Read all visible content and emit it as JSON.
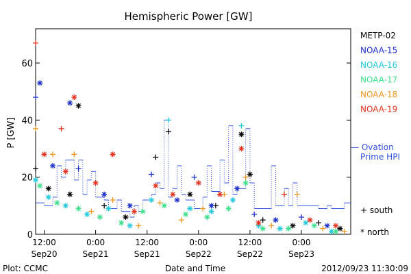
{
  "chart_data": {
    "type": "scatter",
    "title": "Hemispheric Power [GW]",
    "ylabel": "P [GW]",
    "xlabel": "Date and Time",
    "ylim": [
      0,
      72
    ],
    "yticks": [
      0,
      20,
      40,
      60
    ],
    "xlim": [
      "2012-09-20 10:00",
      "2012-09-23 11:30"
    ],
    "xticks": [
      {
        "t": "2012-09-20 12:00",
        "top": "12:00",
        "bottom": "Sep20"
      },
      {
        "t": "2012-09-21 00:00",
        "top": "0:00",
        "bottom": "Sep21"
      },
      {
        "t": "2012-09-21 12:00",
        "top": "12:00",
        "bottom": "Sep21"
      },
      {
        "t": "2012-09-22 00:00",
        "top": "0:00",
        "bottom": "Sep22"
      },
      {
        "t": "2012-09-22 12:00",
        "top": "12:00",
        "bottom": "Sep22"
      },
      {
        "t": "2012-09-23 00:00",
        "top": "0:00",
        "bottom": "Sep23"
      }
    ],
    "grid": false,
    "legend_position": "right",
    "series": [
      {
        "name": "METP-02",
        "color": "#000000",
        "points": [
          [
            "2012-09-20 10:00",
            23,
            "south"
          ],
          [
            "2012-09-20 13:00",
            16,
            "north"
          ],
          [
            "2012-09-20 18:00",
            14,
            "north"
          ],
          [
            "2012-09-20 20:00",
            45,
            "north"
          ],
          [
            "2012-09-21 02:00",
            10,
            "south"
          ],
          [
            "2012-09-21 07:00",
            6,
            "north"
          ],
          [
            "2012-09-21 14:00",
            27,
            "south"
          ],
          [
            "2012-09-21 17:00",
            36,
            "south"
          ],
          [
            "2012-09-21 22:00",
            14,
            "north"
          ],
          [
            "2012-09-22 04:00",
            10,
            "south"
          ],
          [
            "2012-09-22 10:00",
            35,
            "north"
          ],
          [
            "2012-09-22 12:00",
            21,
            "north"
          ],
          [
            "2012-09-22 15:00",
            5,
            "south"
          ],
          [
            "2012-09-22 22:00",
            3,
            "north"
          ],
          [
            "2012-09-23 04:00",
            4,
            "south"
          ],
          [
            "2012-09-23 09:00",
            2,
            "north"
          ]
        ]
      },
      {
        "name": "NOAA-15",
        "color": "#1c2ec8",
        "points": [
          [
            "2012-09-20 10:00",
            48,
            "south"
          ],
          [
            "2012-09-20 11:00",
            53,
            "north"
          ],
          [
            "2012-09-20 14:00",
            24,
            "north"
          ],
          [
            "2012-09-20 18:00",
            46,
            "north"
          ],
          [
            "2012-09-20 20:00",
            23,
            "south"
          ],
          [
            "2012-09-21 02:00",
            14,
            "north"
          ],
          [
            "2012-09-21 08:00",
            10,
            "north"
          ],
          [
            "2012-09-21 13:00",
            21,
            "south"
          ],
          [
            "2012-09-21 19:00",
            12,
            "north"
          ],
          [
            "2012-09-21 23:00",
            20,
            "south"
          ],
          [
            "2012-09-22 03:00",
            10,
            "north"
          ],
          [
            "2012-09-22 09:00",
            16,
            "north"
          ],
          [
            "2012-09-22 13:00",
            7,
            "south"
          ],
          [
            "2012-09-22 18:00",
            5,
            "north"
          ],
          [
            "2012-09-23 00:00",
            6,
            "south"
          ],
          [
            "2012-09-23 06:00",
            3,
            "north"
          ]
        ]
      },
      {
        "name": "NOAA-16",
        "color": "#22c8dc",
        "points": [
          [
            "2012-09-20 10:00",
            19,
            "north"
          ],
          [
            "2012-09-20 13:00",
            13,
            "north"
          ],
          [
            "2012-09-20 17:00",
            10,
            "north"
          ],
          [
            "2012-09-20 22:00",
            7,
            "north"
          ],
          [
            "2012-09-21 03:00",
            9,
            "north"
          ],
          [
            "2012-09-21 08:00",
            3,
            "north"
          ],
          [
            "2012-09-21 13:00",
            12,
            "north"
          ],
          [
            "2012-09-21 17:00",
            40,
            "south"
          ],
          [
            "2012-09-21 22:00",
            9,
            "north"
          ],
          [
            "2012-09-22 03:00",
            8,
            "north"
          ],
          [
            "2012-09-22 08:00",
            12,
            "north"
          ],
          [
            "2012-09-22 10:00",
            38,
            "south"
          ],
          [
            "2012-09-22 14:00",
            3,
            "north"
          ],
          [
            "2012-09-22 19:00",
            2,
            "north"
          ],
          [
            "2012-09-23 01:00",
            4,
            "north"
          ],
          [
            "2012-09-23 07:00",
            1,
            "north"
          ]
        ]
      },
      {
        "name": "NOAA-17",
        "color": "#3ce08c",
        "points": [
          [
            "2012-09-20 11:00",
            17,
            "north"
          ],
          [
            "2012-09-20 15:00",
            11,
            "north"
          ],
          [
            "2012-09-20 20:00",
            9,
            "north"
          ],
          [
            "2012-09-21 01:00",
            6,
            "north"
          ],
          [
            "2012-09-21 06:00",
            4,
            "north"
          ],
          [
            "2012-09-21 11:00",
            8,
            "north"
          ],
          [
            "2012-09-21 16:00",
            10,
            "north"
          ],
          [
            "2012-09-21 21:00",
            7,
            "north"
          ],
          [
            "2012-09-22 02:00",
            6,
            "north"
          ],
          [
            "2012-09-22 07:00",
            9,
            "north"
          ],
          [
            "2012-09-22 11:00",
            18,
            "north"
          ],
          [
            "2012-09-22 15:00",
            2,
            "north"
          ],
          [
            "2012-09-22 21:00",
            2,
            "north"
          ],
          [
            "2012-09-23 03:00",
            3,
            "north"
          ],
          [
            "2012-09-23 08:00",
            1,
            "north"
          ]
        ]
      },
      {
        "name": "NOAA-18",
        "color": "#f0961e",
        "points": [
          [
            "2012-09-20 10:00",
            37,
            "south"
          ],
          [
            "2012-09-20 14:00",
            28,
            "south"
          ],
          [
            "2012-09-20 19:00",
            28,
            "south"
          ],
          [
            "2012-09-20 23:00",
            8,
            "south"
          ],
          [
            "2012-09-21 04:00",
            12,
            "south"
          ],
          [
            "2012-09-21 10:00",
            3,
            "south"
          ],
          [
            "2012-09-21 15:00",
            11,
            "south"
          ],
          [
            "2012-09-21 20:00",
            5,
            "south"
          ],
          [
            "2012-09-22 01:00",
            9,
            "south"
          ],
          [
            "2012-09-22 06:00",
            14,
            "south"
          ],
          [
            "2012-09-22 11:00",
            20,
            "south"
          ],
          [
            "2012-09-22 17:00",
            3,
            "south"
          ],
          [
            "2012-09-22 23:00",
            14,
            "south"
          ],
          [
            "2012-09-23 05:00",
            2,
            "south"
          ],
          [
            "2012-09-23 10:00",
            1,
            "south"
          ]
        ]
      },
      {
        "name": "NOAA-19",
        "color": "#e0321e",
        "points": [
          [
            "2012-09-20 10:00",
            67,
            "south"
          ],
          [
            "2012-09-20 12:00",
            28,
            "north"
          ],
          [
            "2012-09-20 16:00",
            37,
            "south"
          ],
          [
            "2012-09-20 17:00",
            22,
            "north"
          ],
          [
            "2012-09-20 19:00",
            48,
            "north"
          ],
          [
            "2012-09-21 00:00",
            18,
            "north"
          ],
          [
            "2012-09-21 04:00",
            28,
            "north"
          ],
          [
            "2012-09-21 09:00",
            8,
            "north"
          ],
          [
            "2012-09-21 14:00",
            17,
            "north"
          ],
          [
            "2012-09-21 18:00",
            14,
            "north"
          ],
          [
            "2012-09-22 00:00",
            18,
            "north"
          ],
          [
            "2012-09-22 05:00",
            14,
            "north"
          ],
          [
            "2012-09-22 10:00",
            30,
            "north"
          ],
          [
            "2012-09-22 14:00",
            4,
            "north"
          ],
          [
            "2012-09-22 20:00",
            14,
            "south"
          ],
          [
            "2012-09-23 02:00",
            5,
            "north"
          ],
          [
            "2012-09-23 08:00",
            3,
            "north"
          ]
        ]
      }
    ],
    "ovation_line": {
      "name": "— Ovation Prime HPI",
      "color": "#3050e0",
      "points": [
        [
          "2012-09-20 10:00",
          11
        ],
        [
          "2012-09-20 12:00",
          10
        ],
        [
          "2012-09-20 14:00",
          13
        ],
        [
          "2012-09-20 15:00",
          24
        ],
        [
          "2012-09-20 16:00",
          20
        ],
        [
          "2012-09-20 17:00",
          26
        ],
        [
          "2012-09-20 19:00",
          19
        ],
        [
          "2012-09-20 20:00",
          26
        ],
        [
          "2012-09-20 21:00",
          14
        ],
        [
          "2012-09-20 22:00",
          19
        ],
        [
          "2012-09-20 23:00",
          22
        ],
        [
          "2012-09-21 00:00",
          13
        ],
        [
          "2012-09-21 02:00",
          12
        ],
        [
          "2012-09-21 03:00",
          9
        ],
        [
          "2012-09-21 05:00",
          12
        ],
        [
          "2012-09-21 06:00",
          8
        ],
        [
          "2012-09-21 08:00",
          6
        ],
        [
          "2012-09-21 09:00",
          10
        ],
        [
          "2012-09-21 10:00",
          8
        ],
        [
          "2012-09-21 11:00",
          12
        ],
        [
          "2012-09-21 13:00",
          14
        ],
        [
          "2012-09-21 14:00",
          18
        ],
        [
          "2012-09-21 15:00",
          16
        ],
        [
          "2012-09-21 16:00",
          40
        ],
        [
          "2012-09-21 17:00",
          13
        ],
        [
          "2012-09-21 18:00",
          16
        ],
        [
          "2012-09-21 19:00",
          24
        ],
        [
          "2012-09-21 20:00",
          14
        ],
        [
          "2012-09-21 21:00",
          12
        ],
        [
          "2012-09-21 22:00",
          12
        ],
        [
          "2012-09-21 23:00",
          9
        ],
        [
          "2012-09-22 01:00",
          13
        ],
        [
          "2012-09-22 02:00",
          24
        ],
        [
          "2012-09-22 03:00",
          15
        ],
        [
          "2012-09-22 05:00",
          26
        ],
        [
          "2012-09-22 06:00",
          18
        ],
        [
          "2012-09-22 07:00",
          38
        ],
        [
          "2012-09-22 08:00",
          14
        ],
        [
          "2012-09-22 09:00",
          16
        ],
        [
          "2012-09-22 11:00",
          37
        ],
        [
          "2012-09-22 12:00",
          18
        ],
        [
          "2012-09-22 13:00",
          9
        ],
        [
          "2012-09-22 16:00",
          9
        ],
        [
          "2012-09-22 17:00",
          24
        ],
        [
          "2012-09-22 18:00",
          10
        ],
        [
          "2012-09-22 20:00",
          16
        ],
        [
          "2012-09-22 21:00",
          10
        ],
        [
          "2012-09-22 22:00",
          18
        ],
        [
          "2012-09-22 23:00",
          10
        ],
        [
          "2012-09-23 01:00",
          10
        ],
        [
          "2012-09-23 04:00",
          9
        ],
        [
          "2012-09-23 06:00",
          10
        ],
        [
          "2012-09-23 07:00",
          9
        ],
        [
          "2012-09-23 10:00",
          11
        ],
        [
          "2012-09-23 11:30",
          11
        ]
      ]
    },
    "marker_legend": [
      {
        "symbol": "+",
        "label": "south"
      },
      {
        "symbol": "*",
        "label": "north"
      }
    ]
  },
  "footer": {
    "left": "Plot: CCMC",
    "center": "Date and Time",
    "right": "2012/09/23 11:30:09"
  }
}
